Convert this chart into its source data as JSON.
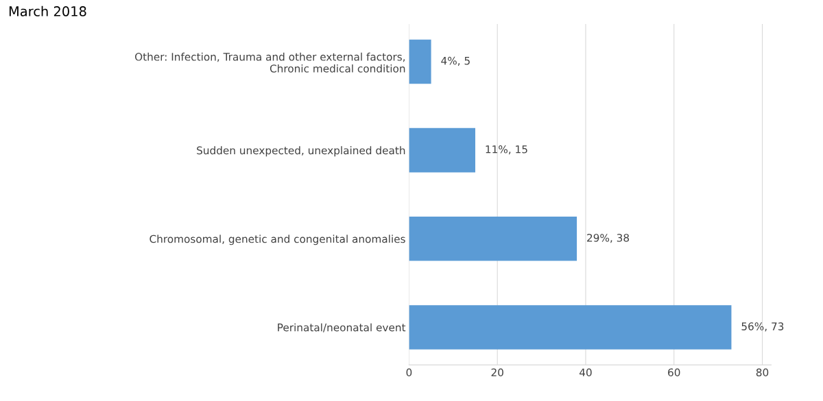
{
  "chart_data": {
    "type": "bar",
    "orientation": "horizontal",
    "title": "March 2018",
    "categories": [
      "Other: Infection, Trauma and other external factors,\nChronic medical condition",
      "Sudden unexpected, unexplained death",
      "Chromosomal, genetic and congenital anomalies",
      "Perinatal/neonatal event"
    ],
    "values": [
      5,
      15,
      38,
      73
    ],
    "value_labels": [
      "4%, 5",
      "11%, 15",
      "29%, 38",
      "56%, 73"
    ],
    "color": "#5b9bd5",
    "xlim": [
      0,
      82
    ],
    "xticks": [
      0,
      20,
      40,
      60,
      80
    ],
    "grid": "x"
  }
}
